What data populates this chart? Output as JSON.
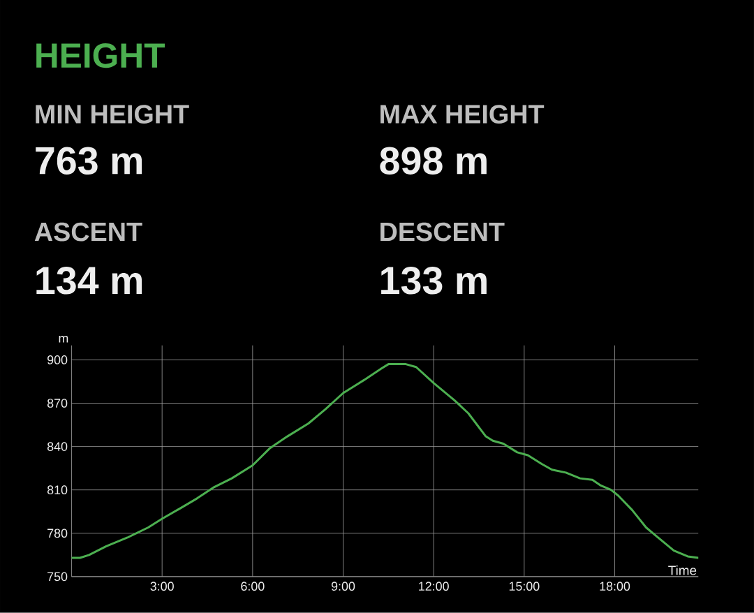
{
  "chart_data": {
    "type": "line",
    "title": "HEIGHT",
    "xlabel": "Time",
    "ylabel": "m",
    "annotations": [
      "MIN HEIGHT",
      "763 m",
      "MAX HEIGHT",
      "898 m",
      "ASCENT",
      "134 m",
      "DESCENT",
      "133 m"
    ],
    "x": [
      0,
      0.28,
      0.58,
      1.15,
      1.85,
      2.54,
      3.0,
      3.58,
      4.15,
      4.73,
      5.31,
      6.0,
      6.58,
      7.15,
      7.85,
      8.42,
      9.0,
      9.69,
      10.27,
      10.5,
      11.08,
      11.42,
      12.0,
      12.69,
      13.15,
      13.73,
      13.96,
      14.31,
      14.77,
      15.12,
      15.58,
      15.92,
      16.38,
      16.85,
      17.26,
      17.54,
      17.88,
      18.12,
      18.58,
      19.04,
      19.38,
      19.96,
      20.42,
      20.77
    ],
    "values": [
      763,
      763,
      765,
      771,
      777,
      784,
      790,
      797,
      804,
      812,
      818,
      827,
      839,
      847,
      856,
      866,
      877,
      886,
      894,
      897,
      897,
      895,
      884,
      872,
      863,
      847,
      844,
      842,
      836,
      834,
      828,
      824,
      822,
      818,
      817,
      813,
      810,
      806,
      796,
      784,
      778,
      768,
      764,
      763
    ],
    "color": "#4caf50",
    "xlim": [
      0,
      20.77
    ],
    "xticks": [
      {
        "value": 3,
        "label": "3:00"
      },
      {
        "value": 6,
        "label": "6:00"
      },
      {
        "value": 9,
        "label": "9:00"
      },
      {
        "value": 12,
        "label": "12:00"
      },
      {
        "value": 15,
        "label": "15:00"
      },
      {
        "value": 18,
        "label": "18:00"
      }
    ],
    "ylim": [
      750,
      910
    ],
    "yticks": [
      750,
      780,
      810,
      840,
      870,
      900
    ],
    "grid": true,
    "marker": "none",
    "line_style": "solid"
  }
}
